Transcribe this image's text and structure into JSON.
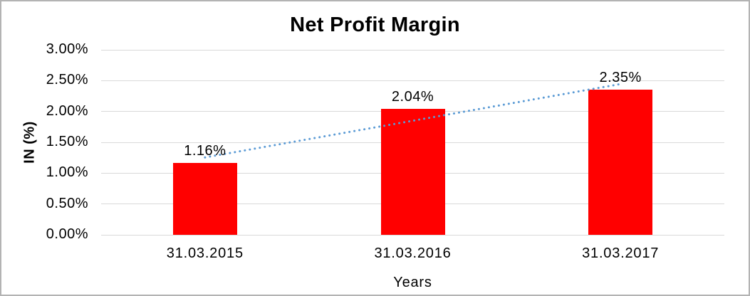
{
  "chart_data": {
    "type": "bar",
    "title": "Net Profit Margin",
    "categories": [
      "31.03.2015",
      "31.03.2016",
      "31.03.2017"
    ],
    "values": [
      1.16,
      2.04,
      2.35
    ],
    "data_labels": [
      "1.16%",
      "2.04%",
      "2.35%"
    ],
    "xlabel": "Years",
    "ylabel": "IN (%)",
    "ylim": [
      0,
      3
    ],
    "ytick_step": 0.5,
    "ytick_labels": [
      "0.00%",
      "0.50%",
      "1.00%",
      "1.50%",
      "2.00%",
      "2.50%",
      "3.00%"
    ],
    "grid": true,
    "legend": "none",
    "bar_color": "#FF0000",
    "gridline_color": "#D9D9D9",
    "trendline": {
      "type": "linear",
      "style": "dotted",
      "color": "#5B9BD5",
      "start_value": 1.255,
      "end_value": 2.445
    }
  }
}
